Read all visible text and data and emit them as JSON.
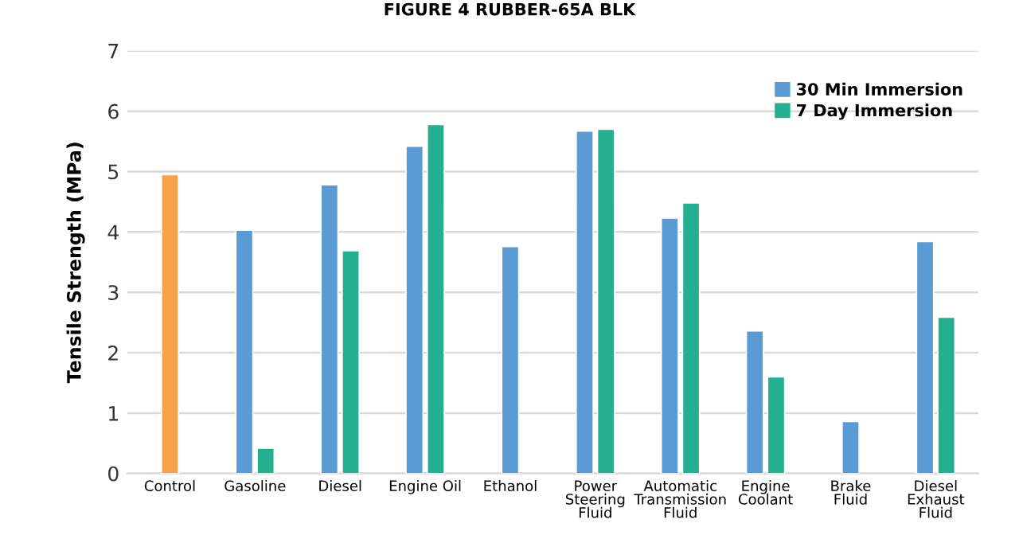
{
  "chart_data": {
    "type": "bar",
    "title": "FIGURE 4 RUBBER-65A BLK",
    "ylabel": "Tensile Strength (MPa)",
    "categories": [
      "Control",
      "Gasoline",
      "Diesel",
      "Engine Oil",
      "Ethanol",
      "Power\nSteering\nFluid",
      "Automatic\nTransmission\nFluid",
      "Engine\nCoolant",
      "Brake\nFluid",
      "Diesel\nExhaust\nFluid"
    ],
    "series": [
      {
        "color": "#f9a04a",
        "values": [
          4.95,
          null,
          null,
          null,
          null,
          null,
          null,
          null,
          null,
          null
        ]
      },
      {
        "name": "30 Min Immersion",
        "color": "#5b9bd5",
        "values": [
          null,
          4.03,
          4.78,
          5.42,
          3.76,
          5.67,
          4.23,
          2.36,
          0.86,
          3.84
        ]
      },
      {
        "name": "7 Day Immersion",
        "color": "#24b08e",
        "values": [
          null,
          0.42,
          3.69,
          5.78,
          null,
          5.7,
          4.48,
          1.6,
          null,
          2.59
        ]
      }
    ],
    "ylim": [
      0,
      7
    ],
    "yticks": [
      0,
      1,
      2,
      3,
      4,
      5,
      6,
      7
    ],
    "grid": "y",
    "legend": "top right"
  }
}
